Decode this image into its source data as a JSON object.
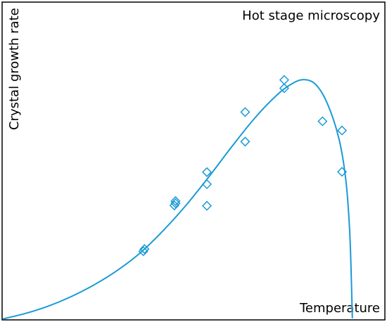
{
  "chart_data": {
    "type": "scatter",
    "title": "Hot stage microscopy",
    "xlabel": "Temperature",
    "ylabel": "Crystal growth rate",
    "axis_ticks": false,
    "grid": false,
    "x_range": [
      0,
      100
    ],
    "y_range": [
      0,
      100
    ],
    "marker": "diamond-open",
    "series_color": "#1a9ad6",
    "points": [
      {
        "x": 36.9,
        "y": 21.6
      },
      {
        "x": 37.2,
        "y": 22.3
      },
      {
        "x": 45.0,
        "y": 36.0
      },
      {
        "x": 45.3,
        "y": 36.7
      },
      {
        "x": 45.3,
        "y": 37.4
      },
      {
        "x": 53.5,
        "y": 35.9
      },
      {
        "x": 53.5,
        "y": 42.7
      },
      {
        "x": 53.5,
        "y": 46.5
      },
      {
        "x": 63.5,
        "y": 56.1
      },
      {
        "x": 63.5,
        "y": 65.4
      },
      {
        "x": 73.7,
        "y": 72.9
      },
      {
        "x": 73.7,
        "y": 75.5
      },
      {
        "x": 83.7,
        "y": 62.5
      },
      {
        "x": 88.8,
        "y": 59.6
      },
      {
        "x": 88.8,
        "y": 46.6
      }
    ],
    "fit_curve": [
      {
        "x": 0.2,
        "y": 0.3
      },
      {
        "x": 6.0,
        "y": 2.0
      },
      {
        "x": 12.0,
        "y": 4.3
      },
      {
        "x": 18.0,
        "y": 7.3
      },
      {
        "x": 24.0,
        "y": 11.0
      },
      {
        "x": 30.0,
        "y": 15.5
      },
      {
        "x": 36.0,
        "y": 21.0
      },
      {
        "x": 42.0,
        "y": 28.0
      },
      {
        "x": 48.0,
        "y": 36.0
      },
      {
        "x": 54.0,
        "y": 45.0
      },
      {
        "x": 60.0,
        "y": 54.5
      },
      {
        "x": 66.0,
        "y": 63.5
      },
      {
        "x": 72.0,
        "y": 71.0
      },
      {
        "x": 76.0,
        "y": 74.5
      },
      {
        "x": 79.0,
        "y": 75.6
      },
      {
        "x": 82.0,
        "y": 74.0
      },
      {
        "x": 85.0,
        "y": 68.0
      },
      {
        "x": 88.0,
        "y": 57.0
      },
      {
        "x": 89.8,
        "y": 44.0
      },
      {
        "x": 90.8,
        "y": 28.0
      },
      {
        "x": 91.3,
        "y": 10.0
      },
      {
        "x": 91.5,
        "y": 0.5
      }
    ]
  }
}
